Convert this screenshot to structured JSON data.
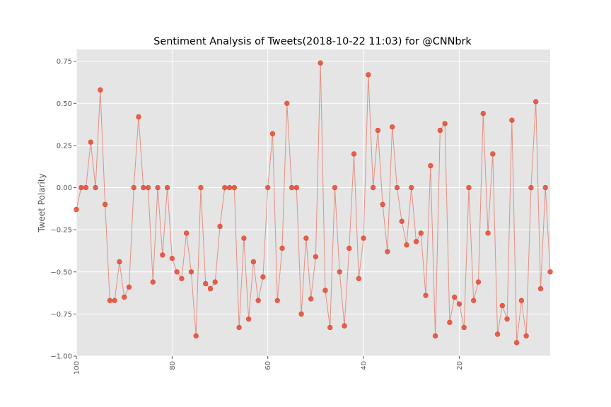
{
  "chart_data": {
    "type": "line",
    "title": "Sentiment Analysis of Tweets(2018-10-22 11:03) for @CNNbrk",
    "xlabel": "",
    "ylabel": "Tweet Polarity",
    "xlim": [
      100,
      1
    ],
    "ylim": [
      -1.0,
      0.82
    ],
    "x_ticks": [
      100,
      80,
      60,
      40,
      20
    ],
    "x_tick_labels": [
      "100",
      "80",
      "60",
      "40",
      "20"
    ],
    "y_ticks": [
      0.75,
      0.5,
      0.25,
      0.0,
      -0.25,
      -0.5,
      -0.75,
      -1.0
    ],
    "y_tick_labels": [
      "0.75",
      "0.50",
      "0.25",
      "0.00",
      "−0.25",
      "−0.50",
      "−0.75",
      "−1.00"
    ],
    "grid": true,
    "background": "#e5e5e5",
    "series": [
      {
        "color": "#e24a33",
        "marker": "o",
        "x": [
          100,
          99,
          98,
          97,
          96,
          95,
          94,
          93,
          92,
          91,
          90,
          89,
          88,
          87,
          86,
          85,
          84,
          83,
          82,
          81,
          80,
          79,
          78,
          77,
          76,
          75,
          74,
          73,
          72,
          71,
          70,
          69,
          68,
          67,
          66,
          65,
          64,
          63,
          62,
          61,
          60,
          59,
          58,
          57,
          56,
          55,
          54,
          53,
          52,
          51,
          50,
          49,
          48,
          47,
          46,
          45,
          44,
          43,
          42,
          41,
          40,
          39,
          38,
          37,
          36,
          35,
          34,
          33,
          32,
          31,
          30,
          29,
          28,
          27,
          26,
          25,
          24,
          23,
          22,
          21,
          20,
          19,
          18,
          17,
          16,
          15,
          14,
          13,
          12,
          11,
          10,
          9,
          8,
          7,
          6,
          5,
          4,
          3,
          2,
          1
        ],
        "y": [
          -0.13,
          0.0,
          0.0,
          0.27,
          0.0,
          0.58,
          -0.1,
          -0.67,
          -0.67,
          -0.44,
          -0.65,
          -0.59,
          0.0,
          0.42,
          0.0,
          0.0,
          -0.56,
          0.0,
          -0.4,
          0.0,
          -0.42,
          -0.5,
          -0.54,
          -0.27,
          -0.5,
          -0.88,
          0.0,
          -0.57,
          -0.6,
          -0.56,
          -0.23,
          0.0,
          0.0,
          0.0,
          -0.83,
          -0.3,
          -0.78,
          -0.44,
          -0.67,
          -0.53,
          0.0,
          0.32,
          -0.67,
          -0.36,
          0.5,
          0.0,
          0.0,
          -0.75,
          -0.3,
          -0.66,
          -0.41,
          0.74,
          -0.61,
          -0.83,
          0.0,
          -0.5,
          -0.82,
          -0.36,
          0.2,
          -0.54,
          -0.3,
          0.67,
          0.0,
          0.34,
          -0.1,
          -0.38,
          0.36,
          0.0,
          -0.2,
          -0.34,
          0.0,
          -0.32,
          -0.27,
          -0.64,
          0.13,
          -0.88,
          0.34,
          0.38,
          -0.8,
          -0.65,
          -0.69,
          -0.83,
          0.0,
          -0.67,
          -0.56,
          0.44,
          -0.27,
          0.2,
          -0.87,
          -0.7,
          -0.78,
          0.4,
          -0.92,
          -0.67,
          -0.88,
          0.0,
          0.51,
          -0.6,
          0.0,
          -0.5
        ]
      }
    ]
  }
}
